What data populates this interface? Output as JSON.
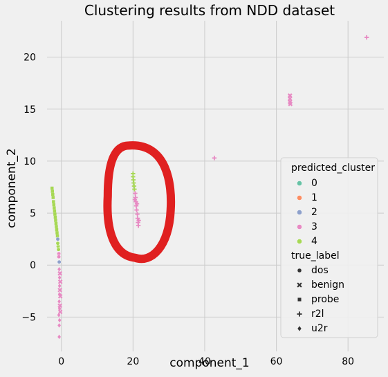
{
  "chart_data": {
    "type": "scatter",
    "title": "Clustering results from NDD dataset",
    "xlabel": "component_1",
    "ylabel": "component_2",
    "xlim": [
      -4,
      90
    ],
    "ylim": [
      -8.3,
      23.5
    ],
    "xticks": [
      0,
      20,
      40,
      60,
      80
    ],
    "yticks": [
      -5,
      0,
      5,
      10,
      15,
      20
    ],
    "grid": true,
    "legend": {
      "placement": "right",
      "hue_title": "predicted_cluster",
      "hue_entries": [
        {
          "label": "0",
          "color": "#66c2a5"
        },
        {
          "label": "1",
          "color": "#fc8d62"
        },
        {
          "label": "2",
          "color": "#8da0cb"
        },
        {
          "label": "3",
          "color": "#e78ac3"
        },
        {
          "label": "4",
          "color": "#a6d854"
        }
      ],
      "style_title": "true_label",
      "style_entries": [
        {
          "label": "dos",
          "marker": "circle"
        },
        {
          "label": "benign",
          "marker": "x"
        },
        {
          "label": "probe",
          "marker": "square"
        },
        {
          "label": "r2l",
          "marker": "plus"
        },
        {
          "label": "u2r",
          "marker": "diamond"
        }
      ]
    },
    "series": [
      {
        "cluster": "4",
        "label": "probe",
        "color": "#a6d854",
        "marker": "square",
        "points": [
          [
            -2.6,
            7.4
          ],
          [
            -2.5,
            7.1
          ],
          [
            -2.4,
            6.8
          ],
          [
            -2.3,
            6.5
          ],
          [
            -2.2,
            6.1
          ],
          [
            -2.1,
            5.8
          ],
          [
            -2.0,
            5.5
          ],
          [
            -1.9,
            5.2
          ],
          [
            -1.8,
            4.9
          ],
          [
            -1.7,
            4.6
          ],
          [
            -1.6,
            4.3
          ],
          [
            -1.5,
            4.0
          ],
          [
            -1.4,
            3.7
          ],
          [
            -1.3,
            3.4
          ],
          [
            -1.2,
            3.1
          ],
          [
            -1.1,
            2.8
          ]
        ]
      },
      {
        "cluster": "4",
        "label": "dos",
        "color": "#a6d854",
        "marker": "circle",
        "points": [
          [
            -0.9,
            1.8
          ],
          [
            -0.8,
            1.5
          ],
          [
            -1.0,
            2.1
          ]
        ]
      },
      {
        "cluster": "2",
        "label": "dos",
        "color": "#8da0cb",
        "marker": "circle",
        "points": [
          [
            -1.0,
            2.5
          ],
          [
            -0.6,
            0.3
          ]
        ]
      },
      {
        "cluster": "3",
        "label": "dos",
        "color": "#e78ac3",
        "marker": "circle",
        "points": [
          [
            -0.7,
            1.1
          ],
          [
            -0.7,
            0.8
          ]
        ]
      },
      {
        "cluster": "3",
        "label": "u2r",
        "color": "#e78ac3",
        "marker": "diamond",
        "points": [
          [
            -0.6,
            -0.4
          ],
          [
            -0.5,
            -1.2
          ],
          [
            -0.5,
            -2.0
          ],
          [
            -0.5,
            -2.8
          ],
          [
            -0.6,
            -3.5
          ],
          [
            -0.5,
            -4.2
          ],
          [
            -0.7,
            -4.8
          ],
          [
            -0.5,
            -5.3
          ],
          [
            -0.6,
            -5.8
          ],
          [
            -0.6,
            -6.9
          ]
        ]
      },
      {
        "cluster": "3",
        "label": "benign",
        "color": "#e78ac3",
        "marker": "x",
        "points": [
          [
            -0.4,
            -0.8
          ],
          [
            -0.3,
            -1.6
          ],
          [
            -0.4,
            -2.4
          ],
          [
            -0.3,
            -3.0
          ],
          [
            -0.4,
            -3.9
          ],
          [
            -0.3,
            -4.5
          ]
        ]
      },
      {
        "cluster": "4",
        "label": "r2l",
        "color": "#a6d854",
        "marker": "plus",
        "points": [
          [
            20.0,
            8.8
          ],
          [
            20.0,
            8.5
          ],
          [
            20.1,
            8.2
          ],
          [
            20.2,
            7.9
          ],
          [
            20.3,
            7.6
          ],
          [
            20.4,
            7.3
          ]
        ]
      },
      {
        "cluster": "3",
        "label": "r2l",
        "color": "#e78ac3",
        "marker": "plus",
        "points": [
          [
            20.6,
            6.9
          ],
          [
            20.7,
            6.5
          ],
          [
            20.8,
            6.1
          ],
          [
            20.9,
            5.7
          ],
          [
            21.0,
            5.3
          ],
          [
            21.2,
            4.9
          ],
          [
            21.3,
            4.5
          ],
          [
            21.4,
            4.1
          ],
          [
            21.5,
            3.8
          ],
          [
            20.5,
            6.3
          ],
          [
            21.1,
            5.9
          ],
          [
            21.6,
            4.3
          ]
        ]
      },
      {
        "cluster": "3",
        "label": "r2l",
        "color": "#e78ac3",
        "marker": "plus",
        "points": [
          [
            42.7,
            10.3
          ],
          [
            85.2,
            21.9
          ]
        ]
      },
      {
        "cluster": "3",
        "label": "benign",
        "color": "#e78ac3",
        "marker": "x",
        "points": [
          [
            63.8,
            16.3
          ],
          [
            63.8,
            16.0
          ],
          [
            63.8,
            15.7
          ],
          [
            63.9,
            15.5
          ]
        ]
      }
    ],
    "annotations": [
      {
        "type": "freehand-ellipse",
        "color": "#e02020",
        "center": [
          21.5,
          6.1
        ],
        "rx": 9,
        "ry": 5.4
      }
    ]
  }
}
